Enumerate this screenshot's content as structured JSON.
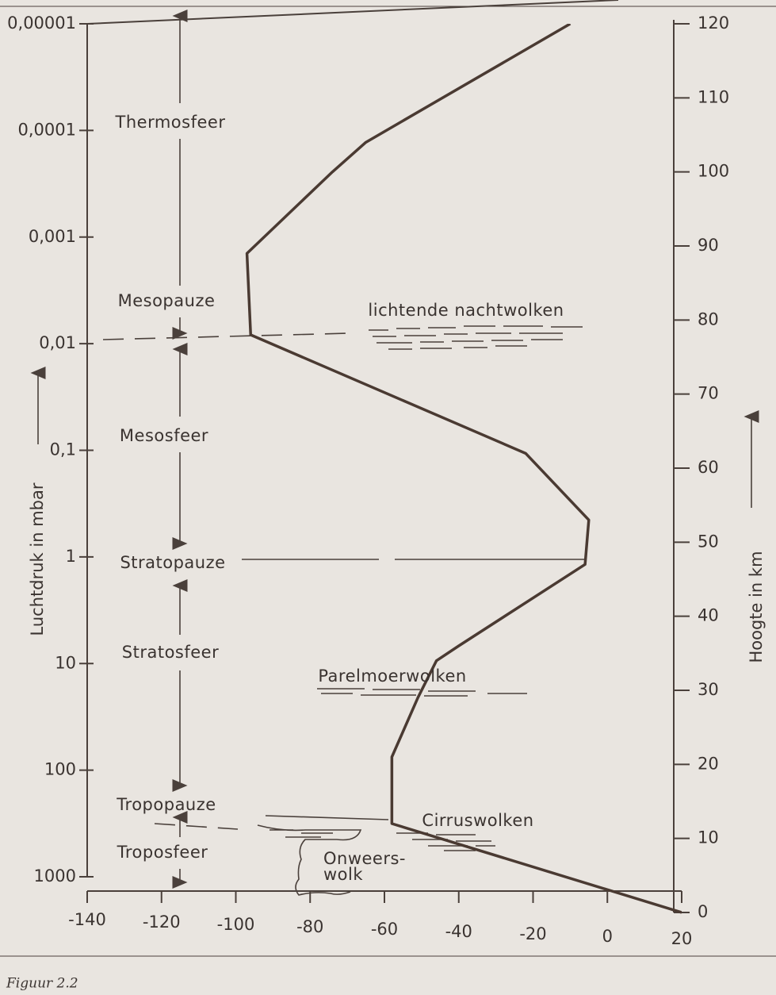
{
  "chart_data": {
    "type": "line",
    "x_label_left": "Luchtdruk in mbar",
    "x_label_right": "Hoogte in km",
    "xlim": [
      -140,
      20
    ],
    "xticks": [
      -140,
      -120,
      -100,
      -80,
      -60,
      -40,
      -20,
      0,
      20
    ],
    "ylim": [
      1000,
      1e-05
    ],
    "ylog": true,
    "yticks": [
      1000,
      100,
      10,
      1,
      {
        "value": 0.1,
        "label": "0,1"
      },
      {
        "value": 0.01,
        "label": "0,01"
      },
      {
        "value": 0.001,
        "label": "0,001"
      },
      {
        "value": 0.0001,
        "label": "0,0001"
      },
      {
        "value": 1e-05,
        "label": "0,00001"
      }
    ],
    "y2lim": [
      0,
      120
    ],
    "y2ticks": [
      0,
      10,
      20,
      30,
      40,
      50,
      60,
      70,
      80,
      90,
      100,
      110,
      120
    ],
    "series": [
      {
        "color": "#4a3a32",
        "axis": "y2",
        "x": [
          20,
          -58,
          -58,
          -51,
          -46,
          -40,
          -6,
          -5,
          -22,
          -96,
          -97,
          -74,
          -65,
          -10
        ],
        "values": [
          0,
          12,
          21,
          29,
          34,
          36,
          47,
          53,
          62,
          78,
          89,
          100,
          104,
          120
        ]
      }
    ],
    "annotations": [
      "Thermosfeer",
      "Mesopauze",
      "Mesosfeer",
      "Stratopauze",
      "Stratosfeer",
      "Tropopauze",
      "Troposfeer",
      "lichtende nachtwolken",
      "Parelmoerwolken",
      "Cirruswolken",
      "Onweers-",
      "wolk"
    ],
    "caption": "Figuur 2.2"
  }
}
